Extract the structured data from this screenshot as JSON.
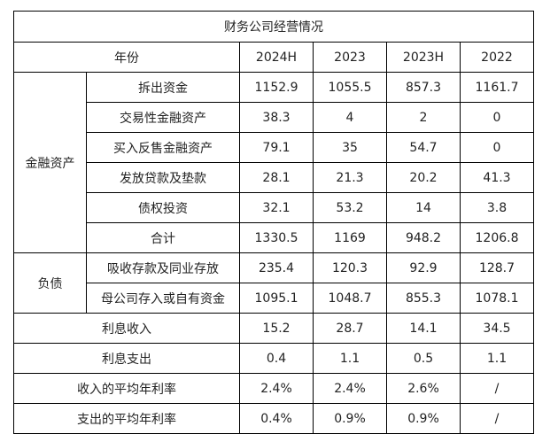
{
  "title": "财务公司经营情况",
  "header": {
    "label": "年份",
    "years": [
      "2024H",
      "2023",
      "2023H",
      "2022"
    ]
  },
  "groups": {
    "assets": "金融资产",
    "liabilities": "负债"
  },
  "rows": [
    {
      "label": "拆出资金",
      "values": [
        "1152.9",
        "1055.5",
        "857.3",
        "1161.7"
      ]
    },
    {
      "label": "交易性金融资产",
      "values": [
        "38.3",
        "4",
        "2",
        "0"
      ]
    },
    {
      "label": "买入反售金融资产",
      "values": [
        "79.1",
        "35",
        "54.7",
        "0"
      ]
    },
    {
      "label": "发放贷款及垫款",
      "values": [
        "28.1",
        "21.3",
        "20.2",
        "41.3"
      ]
    },
    {
      "label": "债权投资",
      "values": [
        "32.1",
        "53.2",
        "14",
        "3.8"
      ]
    },
    {
      "label": "合计",
      "values": [
        "1330.5",
        "1169",
        "948.2",
        "1206.8"
      ]
    },
    {
      "label": "吸收存款及同业存放",
      "values": [
        "235.4",
        "120.3",
        "92.9",
        "128.7"
      ]
    },
    {
      "label": "母公司存入或自有资金",
      "values": [
        "1095.1",
        "1048.7",
        "855.3",
        "1078.1"
      ]
    },
    {
      "label": "利息收入",
      "values": [
        "15.2",
        "28.7",
        "14.1",
        "34.5"
      ]
    },
    {
      "label": "利息支出",
      "values": [
        "0.4",
        "1.1",
        "0.5",
        "1.1"
      ]
    },
    {
      "label": "收入的平均年利率",
      "values": [
        "2.4%",
        "2.4%",
        "2.6%",
        "/"
      ]
    },
    {
      "label": "支出的平均年利率",
      "values": [
        "0.4%",
        "0.9%",
        "0.9%",
        "/"
      ]
    }
  ]
}
